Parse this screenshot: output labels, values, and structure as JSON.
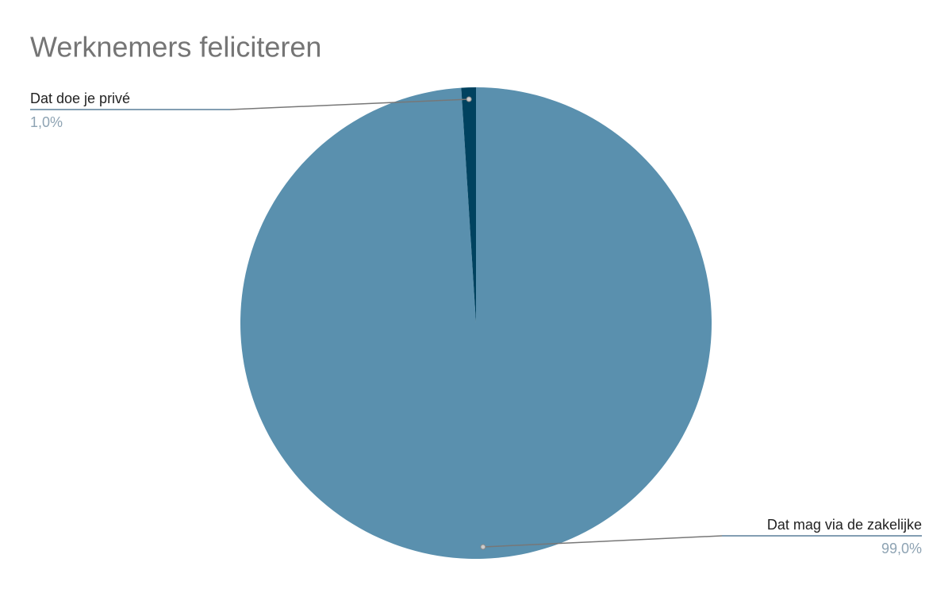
{
  "chart_data": {
    "type": "pie",
    "title": "Werknemers feliciteren",
    "categories": [
      "Dat mag via de zakelijke",
      "Dat doe je privé"
    ],
    "values": [
      99.0,
      1.0
    ],
    "value_labels": [
      "99,0%",
      "1,0%"
    ],
    "colors": [
      "#5a90ae",
      "#00425f"
    ]
  }
}
